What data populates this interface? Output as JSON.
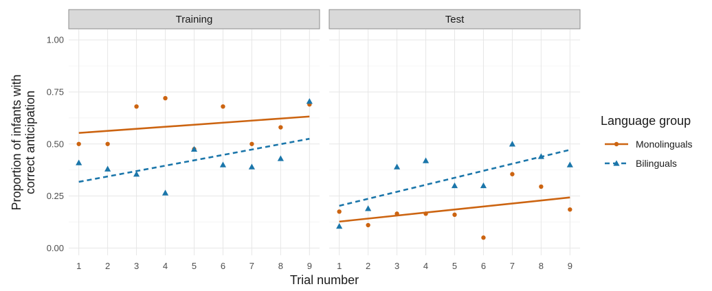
{
  "chart_data": {
    "type": "scatter",
    "ylabel": "Proportion of infants with\ncorrect anticipation",
    "xlabel": "Trial number",
    "x": [
      1,
      2,
      3,
      4,
      5,
      6,
      7,
      8,
      9
    ],
    "xlim": [
      0.65,
      9.35
    ],
    "ylim": [
      -0.035,
      1.05
    ],
    "y_ticks": [
      "0.00",
      "0.25",
      "0.50",
      "0.75",
      "1.00"
    ],
    "x_ticks": [
      "1",
      "2",
      "3",
      "4",
      "5",
      "6",
      "7",
      "8",
      "9"
    ],
    "grid": true,
    "legend": {
      "title": "Language group",
      "placement": "right",
      "entries": [
        {
          "name": "Monolinguals",
          "color": "#cc6411",
          "shape": "circle",
          "line": "solid"
        },
        {
          "name": "Bilinguals",
          "color": "#1b76aa",
          "shape": "triangle",
          "line": "dashed"
        }
      ]
    },
    "panels": [
      {
        "strip": "Training",
        "series": [
          {
            "name": "Monolinguals",
            "values": [
              0.5,
              0.5,
              0.68,
              0.72,
              0.475,
              0.68,
              0.5,
              0.58,
              0.69
            ],
            "fit": {
              "start": 0.553,
              "end": 0.632
            }
          },
          {
            "name": "Bilinguals",
            "values": [
              0.41,
              0.38,
              0.355,
              0.265,
              0.475,
              0.4,
              0.39,
              0.43,
              0.705
            ],
            "fit": {
              "start": 0.318,
              "end": 0.525
            }
          }
        ]
      },
      {
        "strip": "Test",
        "series": [
          {
            "name": "Monolinguals",
            "values": [
              0.175,
              0.11,
              0.165,
              0.165,
              0.16,
              0.05,
              0.355,
              0.295,
              0.185
            ],
            "fit": {
              "start": 0.127,
              "end": 0.243
            }
          },
          {
            "name": "Bilinguals",
            "values": [
              0.105,
              0.19,
              0.39,
              0.42,
              0.3,
              0.3,
              0.5,
              0.44,
              0.4
            ],
            "fit": {
              "start": 0.203,
              "end": 0.472
            }
          }
        ]
      }
    ]
  }
}
